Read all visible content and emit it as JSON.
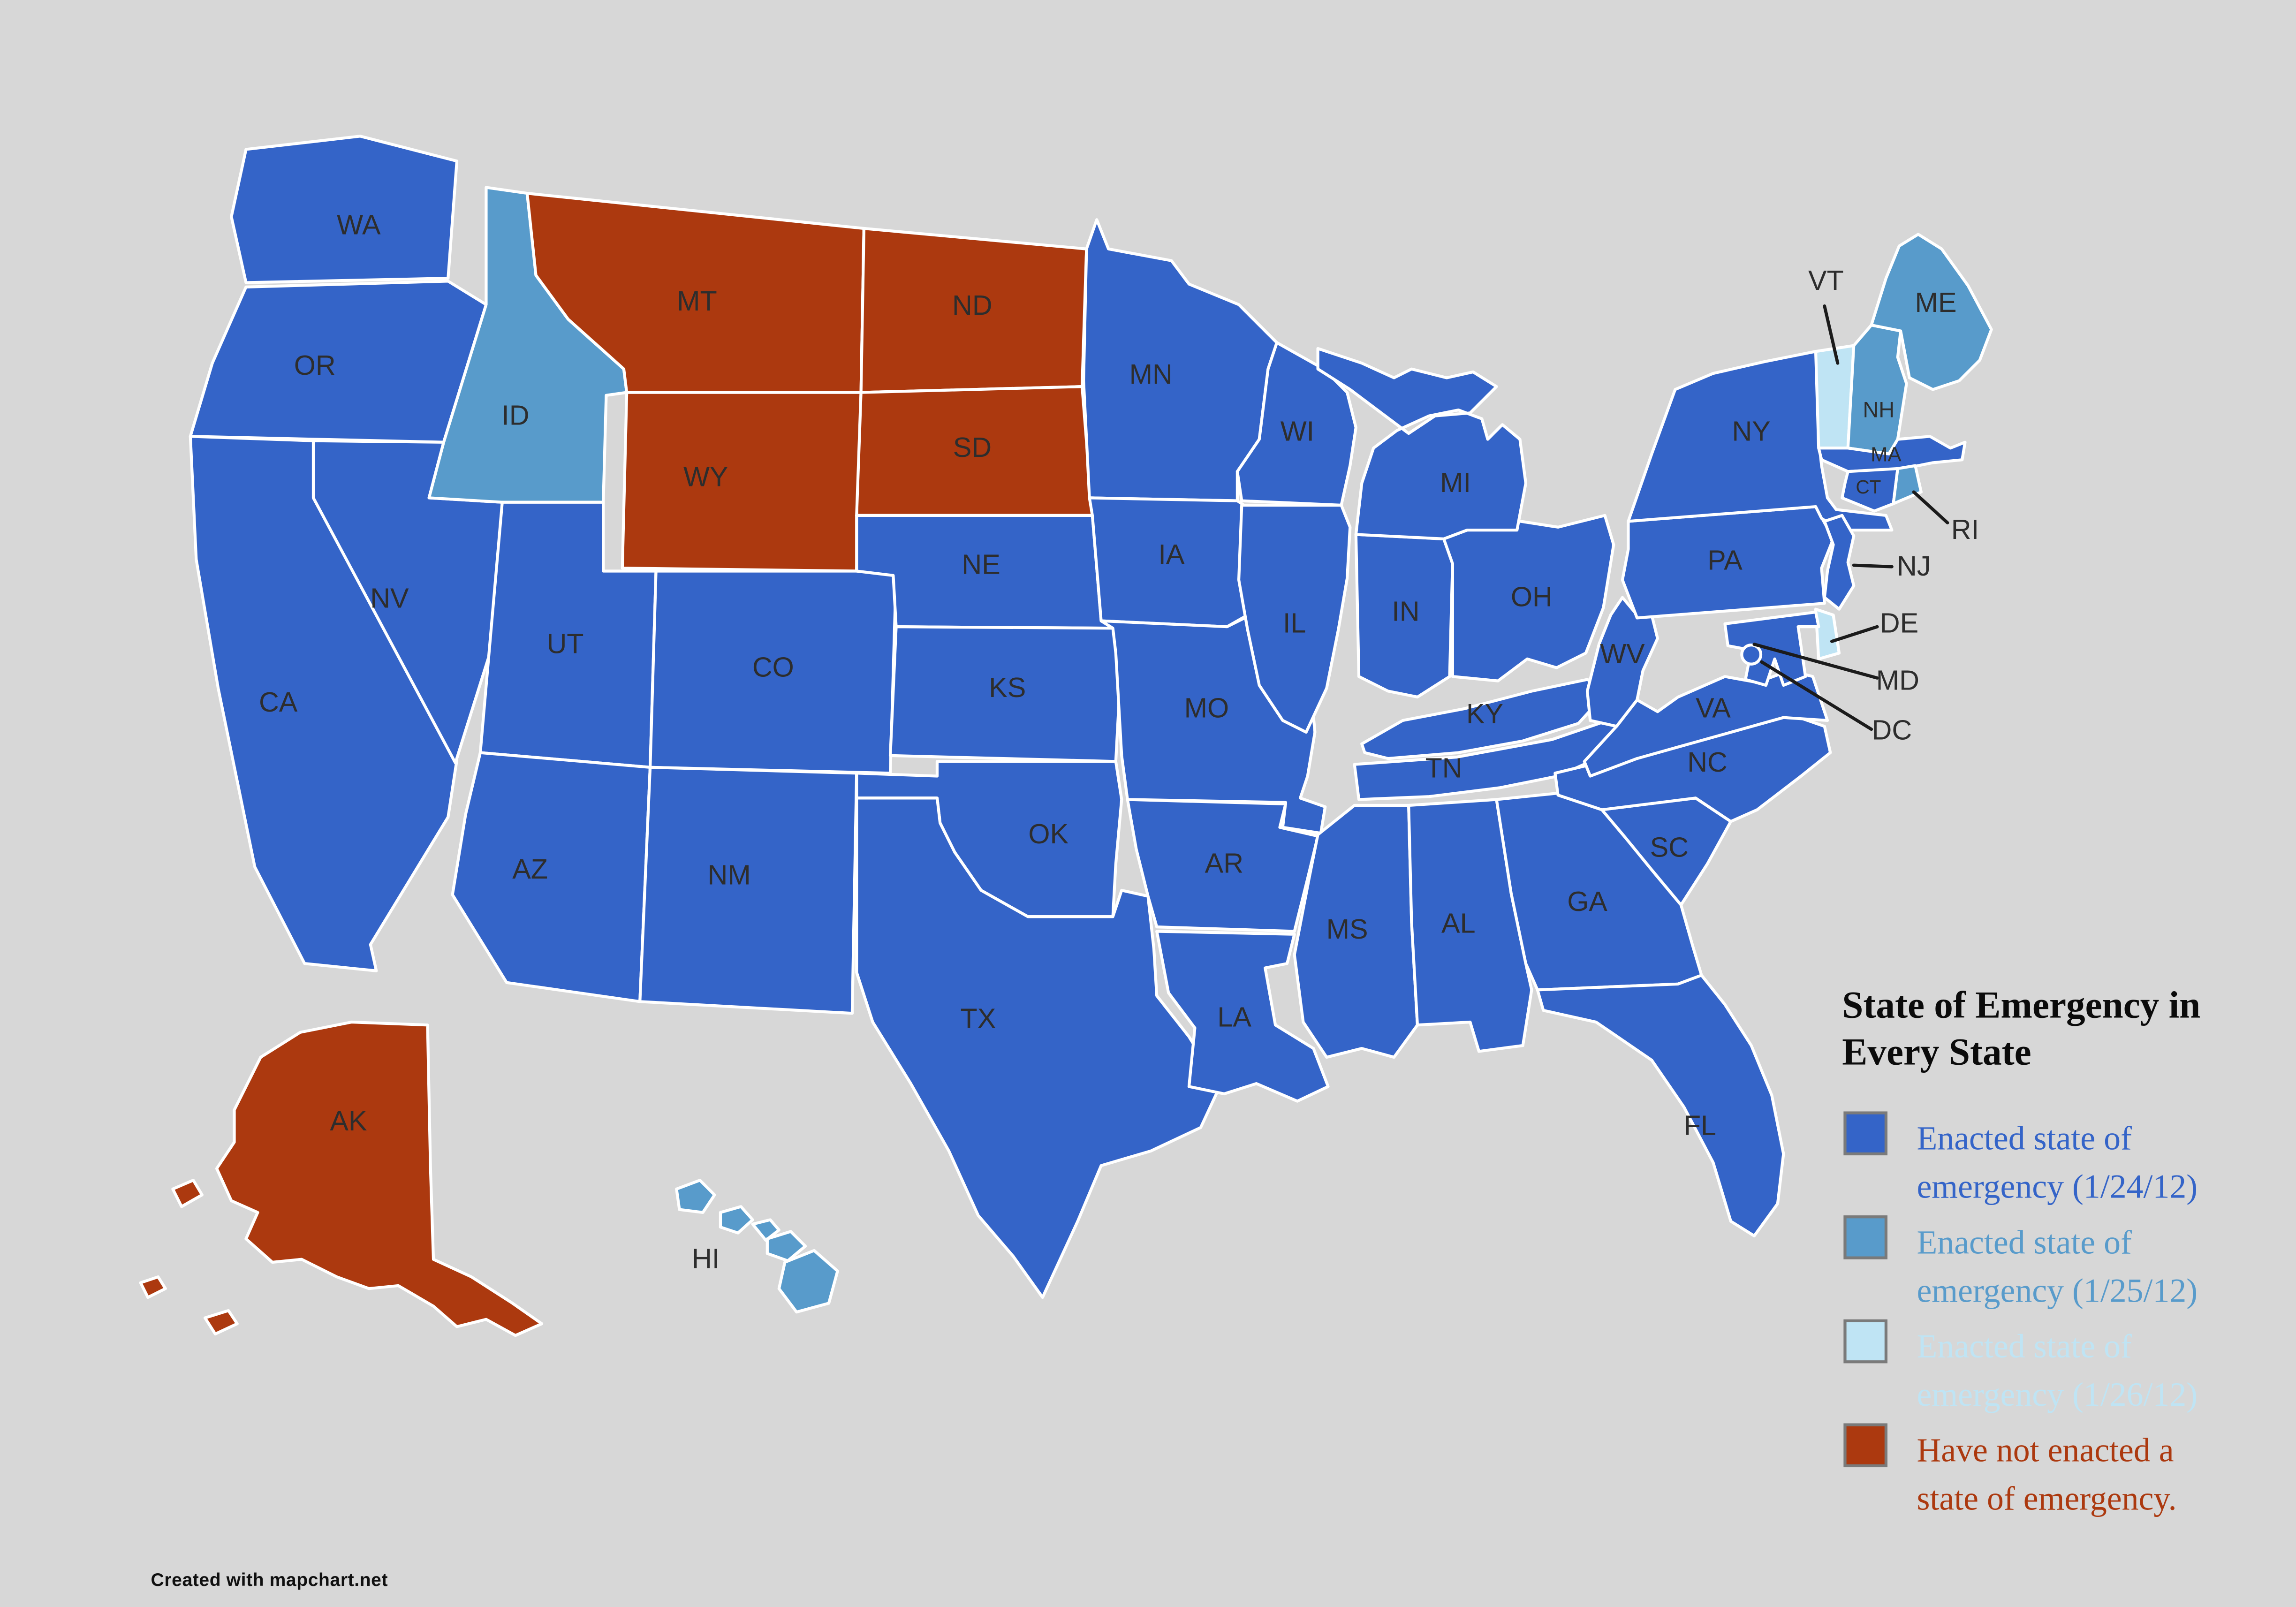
{
  "page": {
    "background": "#d7d7d7"
  },
  "title": {
    "line1": "State of Emergency in",
    "line2": "Every State"
  },
  "credit": "Created with mapchart.net",
  "categories": {
    "jan24": "#3464c8",
    "jan25": "#589bcb",
    "jan26": "#bfe4f4",
    "none": "#ac390f"
  },
  "legend": {
    "swatch_border": "#7a7a7a",
    "items": [
      {
        "category": "jan24",
        "line1": "Enacted state of",
        "line2": "emergency (1/24/12)"
      },
      {
        "category": "jan25",
        "line1": "Enacted state of",
        "line2": "emergency (1/25/12)"
      },
      {
        "category": "jan26",
        "line1": "Enacted state of",
        "line2": "emergency (1/26/12)"
      },
      {
        "category": "none",
        "line1": "Have not enacted a",
        "line2": "state of emergency."
      }
    ]
  },
  "map": {
    "border_color": "#ffffff",
    "label_color": "#2d2d2d",
    "leader_color": "#1b1b1b",
    "states": [
      {
        "id": "WA",
        "label": "WA",
        "category": "jan24"
      },
      {
        "id": "OR",
        "label": "OR",
        "category": "jan24"
      },
      {
        "id": "CA",
        "label": "CA",
        "category": "jan24"
      },
      {
        "id": "NV",
        "label": "NV",
        "category": "jan24"
      },
      {
        "id": "ID",
        "label": "ID",
        "category": "jan25"
      },
      {
        "id": "MT",
        "label": "MT",
        "category": "none"
      },
      {
        "id": "WY",
        "label": "WY",
        "category": "none"
      },
      {
        "id": "UT",
        "label": "UT",
        "category": "jan24"
      },
      {
        "id": "CO",
        "label": "CO",
        "category": "jan24"
      },
      {
        "id": "AZ",
        "label": "AZ",
        "category": "jan24"
      },
      {
        "id": "NM",
        "label": "NM",
        "category": "jan24"
      },
      {
        "id": "ND",
        "label": "ND",
        "category": "none"
      },
      {
        "id": "SD",
        "label": "SD",
        "category": "none"
      },
      {
        "id": "NE",
        "label": "NE",
        "category": "jan24"
      },
      {
        "id": "KS",
        "label": "KS",
        "category": "jan24"
      },
      {
        "id": "OK",
        "label": "OK",
        "category": "jan24"
      },
      {
        "id": "TX",
        "label": "TX",
        "category": "jan24"
      },
      {
        "id": "MN",
        "label": "MN",
        "category": "jan24"
      },
      {
        "id": "IA",
        "label": "IA",
        "category": "jan24"
      },
      {
        "id": "MO",
        "label": "MO",
        "category": "jan24"
      },
      {
        "id": "AR",
        "label": "AR",
        "category": "jan24"
      },
      {
        "id": "LA",
        "label": "LA",
        "category": "jan24"
      },
      {
        "id": "WI",
        "label": "WI",
        "category": "jan24"
      },
      {
        "id": "IL",
        "label": "IL",
        "category": "jan24"
      },
      {
        "id": "IN",
        "label": "IN",
        "category": "jan24"
      },
      {
        "id": "OH",
        "label": "OH",
        "category": "jan24"
      },
      {
        "id": "MI",
        "label": "MI",
        "category": "jan24"
      },
      {
        "id": "KY",
        "label": "KY",
        "category": "jan24"
      },
      {
        "id": "TN",
        "label": "TN",
        "category": "jan24"
      },
      {
        "id": "MS",
        "label": "MS",
        "category": "jan24"
      },
      {
        "id": "AL",
        "label": "AL",
        "category": "jan24"
      },
      {
        "id": "GA",
        "label": "GA",
        "category": "jan24"
      },
      {
        "id": "FL",
        "label": "FL",
        "category": "jan24"
      },
      {
        "id": "SC",
        "label": "SC",
        "category": "jan24"
      },
      {
        "id": "NC",
        "label": "NC",
        "category": "jan24"
      },
      {
        "id": "VA",
        "label": "VA",
        "category": "jan24"
      },
      {
        "id": "WV",
        "label": "WV",
        "category": "jan24"
      },
      {
        "id": "PA",
        "label": "PA",
        "category": "jan24"
      },
      {
        "id": "NY",
        "label": "NY",
        "category": "jan24"
      },
      {
        "id": "VT",
        "label": "VT",
        "category": "jan26"
      },
      {
        "id": "NH",
        "label": "NH",
        "category": "jan25"
      },
      {
        "id": "ME",
        "label": "ME",
        "category": "jan25"
      },
      {
        "id": "MA",
        "label": "MA",
        "category": "jan24"
      },
      {
        "id": "CT",
        "label": "CT",
        "category": "jan24"
      },
      {
        "id": "RI",
        "label": "RI",
        "category": "jan25"
      },
      {
        "id": "NJ",
        "label": "NJ",
        "category": "jan24"
      },
      {
        "id": "DE",
        "label": "DE",
        "category": "jan26"
      },
      {
        "id": "MD",
        "label": "MD",
        "category": "jan24"
      },
      {
        "id": "DC",
        "label": "DC",
        "category": "jan24"
      },
      {
        "id": "AK",
        "label": "AK",
        "category": "none"
      },
      {
        "id": "HI",
        "label": "HI",
        "category": "jan25"
      }
    ]
  }
}
